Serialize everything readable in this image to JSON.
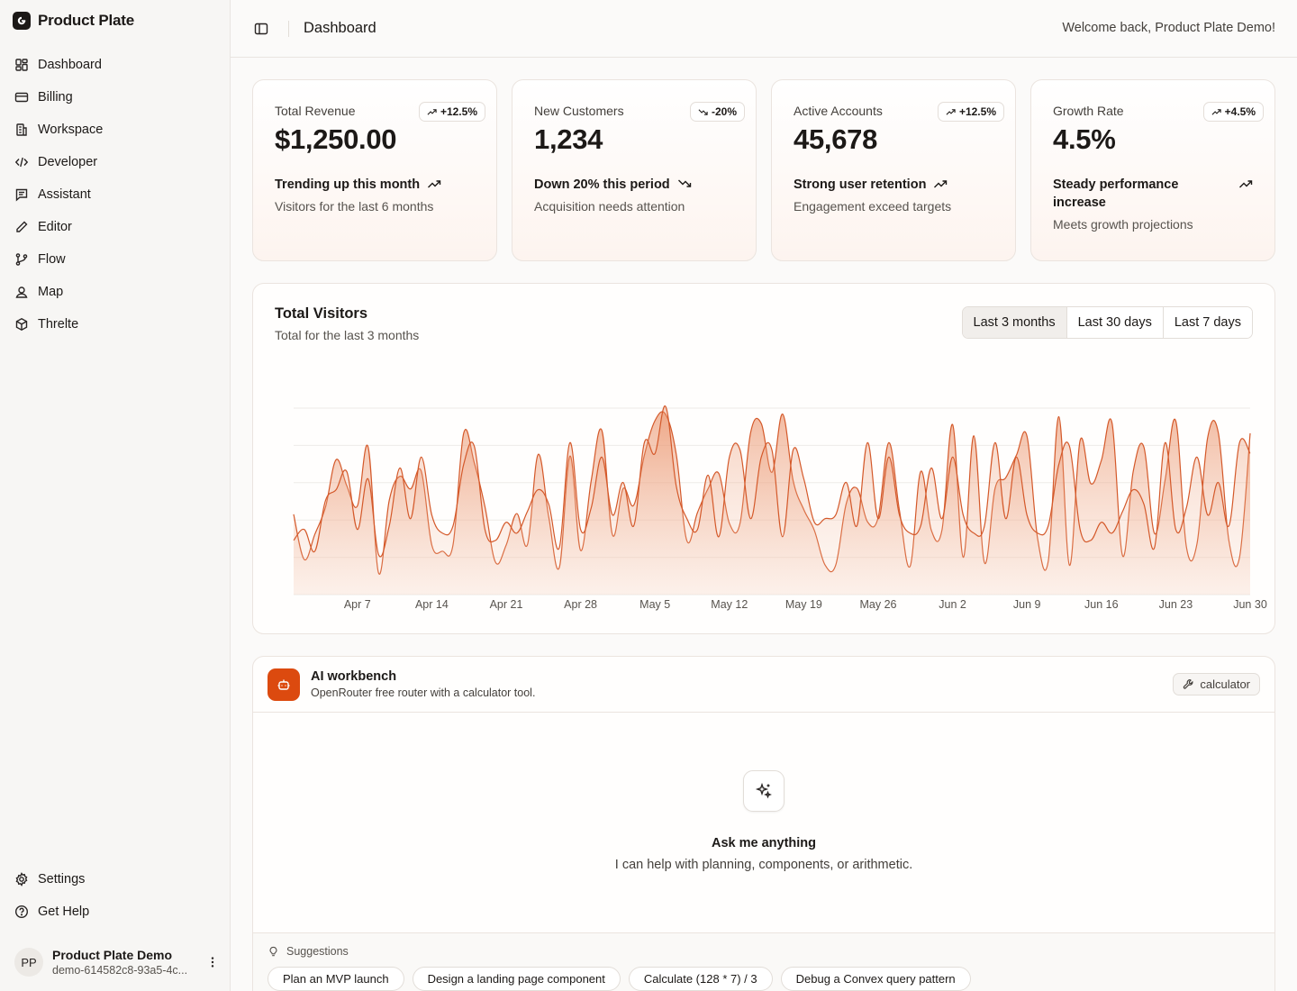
{
  "app": {
    "name": "Product Plate"
  },
  "sidebar": {
    "items": [
      {
        "label": "Dashboard",
        "icon": "dashboard-icon"
      },
      {
        "label": "Billing",
        "icon": "credit-card-icon"
      },
      {
        "label": "Workspace",
        "icon": "building-icon"
      },
      {
        "label": "Developer",
        "icon": "code-icon"
      },
      {
        "label": "Assistant",
        "icon": "message-square-icon"
      },
      {
        "label": "Editor",
        "icon": "pencil-icon"
      },
      {
        "label": "Flow",
        "icon": "git-branch-icon"
      },
      {
        "label": "Map",
        "icon": "map-pin-user-icon"
      },
      {
        "label": "Threlte",
        "icon": "box-icon"
      }
    ],
    "bottom_items": [
      {
        "label": "Settings",
        "icon": "gear-icon"
      },
      {
        "label": "Get Help",
        "icon": "help-circle-icon"
      }
    ],
    "user": {
      "initials": "PP",
      "name": "Product Plate Demo",
      "email": "demo-614582c8-93a5-4c..."
    }
  },
  "header": {
    "title": "Dashboard",
    "welcome": "Welcome back, Product Plate Demo!"
  },
  "stats": [
    {
      "label": "Total Revenue",
      "value": "$1,250.00",
      "badge": "+12.5%",
      "trend": "up",
      "headline": "Trending up this month",
      "sub": "Visitors for the last 6 months"
    },
    {
      "label": "New Customers",
      "value": "1,234",
      "badge": "-20%",
      "trend": "down",
      "headline": "Down 20% this period",
      "sub": "Acquisition needs attention"
    },
    {
      "label": "Active Accounts",
      "value": "45,678",
      "badge": "+12.5%",
      "trend": "up",
      "headline": "Strong user retention",
      "sub": "Engagement exceed targets"
    },
    {
      "label": "Growth Rate",
      "value": "4.5%",
      "badge": "+4.5%",
      "trend": "up",
      "headline": "Steady performance increase",
      "sub": "Meets growth projections"
    }
  ],
  "visitors": {
    "title": "Total Visitors",
    "subtitle": "Total for the last 3 months",
    "ranges": [
      "Last 3 months",
      "Last 30 days",
      "Last 7 days"
    ],
    "selected_range": "Last 3 months"
  },
  "chart_data": {
    "type": "area",
    "title": "Total Visitors",
    "subtitle": "Total for the last 3 months",
    "x_tick_labels": [
      "Apr 7",
      "Apr 14",
      "Apr 21",
      "Apr 28",
      "May 5",
      "May 12",
      "May 19",
      "May 26",
      "Jun 2",
      "Jun 9",
      "Jun 16",
      "Jun 23",
      "Jun 30"
    ],
    "x": [
      "Apr 1",
      "Apr 2",
      "Apr 3",
      "Apr 4",
      "Apr 5",
      "Apr 6",
      "Apr 7",
      "Apr 8",
      "Apr 9",
      "Apr 10",
      "Apr 11",
      "Apr 12",
      "Apr 13",
      "Apr 14",
      "Apr 15",
      "Apr 16",
      "Apr 17",
      "Apr 18",
      "Apr 19",
      "Apr 20",
      "Apr 21",
      "Apr 22",
      "Apr 23",
      "Apr 24",
      "Apr 25",
      "Apr 26",
      "Apr 27",
      "Apr 28",
      "Apr 29",
      "Apr 30",
      "May 1",
      "May 2",
      "May 3",
      "May 4",
      "May 5",
      "May 6",
      "May 7",
      "May 8",
      "May 9",
      "May 10",
      "May 11",
      "May 12",
      "May 13",
      "May 14",
      "May 15",
      "May 16",
      "May 17",
      "May 18",
      "May 19",
      "May 20",
      "May 21",
      "May 22",
      "May 23",
      "May 24",
      "May 25",
      "May 26",
      "May 27",
      "May 28",
      "May 29",
      "May 30",
      "May 31",
      "Jun 1",
      "Jun 2",
      "Jun 3",
      "Jun 4",
      "Jun 5",
      "Jun 6",
      "Jun 7",
      "Jun 8",
      "Jun 9",
      "Jun 10",
      "Jun 11",
      "Jun 12",
      "Jun 13",
      "Jun 14",
      "Jun 15",
      "Jun 16",
      "Jun 17",
      "Jun 18",
      "Jun 19",
      "Jun 20",
      "Jun 21",
      "Jun 22",
      "Jun 23",
      "Jun 24",
      "Jun 25",
      "Jun 26",
      "Jun 27",
      "Jun 28",
      "Jun 29",
      "Jun 30"
    ],
    "series": [
      {
        "values": [
          222,
          97,
          167,
          242,
          373,
          301,
          245,
          409,
          59,
          261,
          327,
          292,
          342,
          137,
          120,
          138,
          446,
          364,
          243,
          89,
          137,
          224,
          138,
          387,
          215,
          75,
          383,
          122,
          315,
          454,
          165,
          293,
          247,
          385,
          481,
          498,
          388,
          149,
          227,
          293,
          335,
          197,
          197,
          448,
          473,
          338,
          499,
          315,
          235,
          177,
          82,
          81,
          252,
          294,
          201,
          213,
          420,
          233,
          78,
          340,
          178,
          178,
          470,
          103,
          439,
          88,
          294,
          323,
          385,
          438,
          155,
          92,
          492,
          81,
          426,
          307,
          371,
          475,
          107,
          341,
          408,
          169,
          317,
          480,
          132,
          141,
          434,
          448,
          149,
          103,
          446
        ]
      },
      {
        "values": [
          150,
          180,
          120,
          260,
          290,
          340,
          180,
          320,
          110,
          190,
          350,
          210,
          380,
          220,
          170,
          190,
          360,
          410,
          180,
          150,
          200,
          170,
          230,
          290,
          250,
          130,
          420,
          180,
          240,
          380,
          220,
          310,
          190,
          420,
          390,
          520,
          300,
          210,
          180,
          330,
          160,
          380,
          400,
          210,
          380,
          400,
          160,
          400,
          320,
          200,
          210,
          220,
          310,
          190,
          420,
          210,
          380,
          220,
          170,
          190,
          350,
          210,
          380,
          220,
          170,
          190,
          420,
          210,
          380,
          220,
          170,
          190,
          360,
          410,
          180,
          150,
          200,
          170,
          230,
          290,
          250,
          130,
          420,
          180,
          240,
          380,
          220,
          310,
          190,
          420,
          390
        ]
      }
    ]
  },
  "workbench": {
    "title": "AI workbench",
    "description": "OpenRouter free router with a calculator tool.",
    "tool": "calculator",
    "empty_title": "Ask me anything",
    "empty_sub": "I can help with planning, components, or arithmetic.",
    "suggestions_label": "Suggestions",
    "suggestions": [
      "Plan an MVP launch",
      "Design a landing page component",
      "Calculate (128 * 7) / 3",
      "Debug a Convex query pattern"
    ]
  },
  "colors": {
    "accent": "#dc4a0f",
    "series_stroke": "#d4592a",
    "fill_top": "#eda582"
  }
}
